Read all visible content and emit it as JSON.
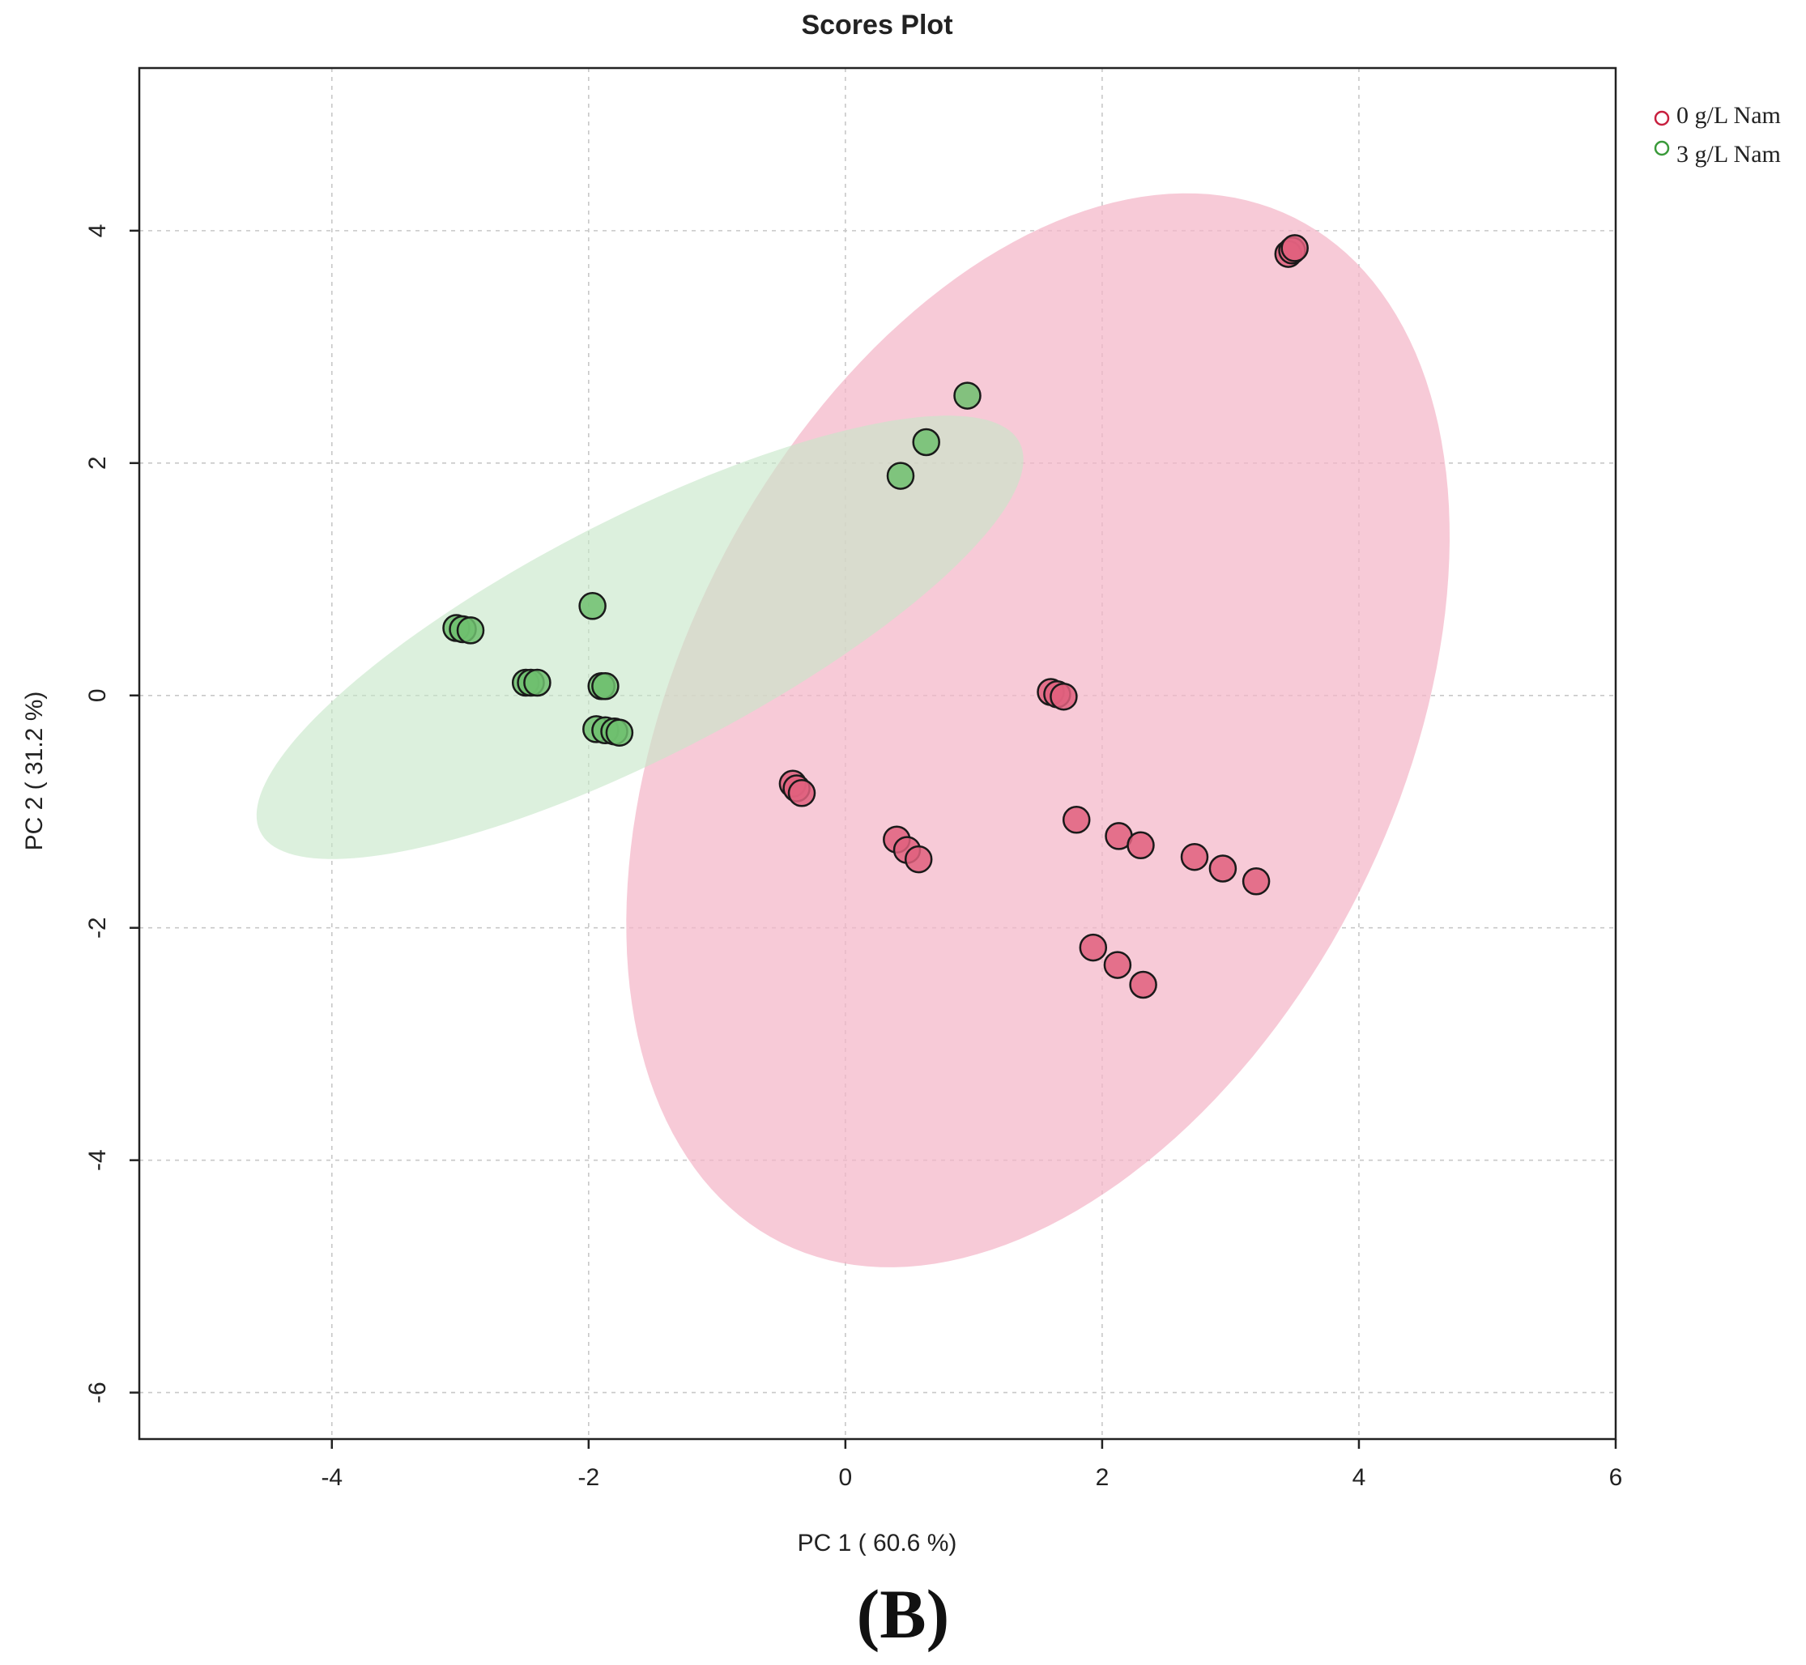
{
  "chart_data": {
    "type": "scatter",
    "title": "Scores Plot",
    "xlabel": "PC 1 ( 60.6 %)",
    "ylabel": "PC 2 ( 31.2 %)",
    "xlim": [
      -5.5,
      6.0
    ],
    "ylim": [
      -6.4,
      5.4
    ],
    "xticks": [
      -4,
      -2,
      0,
      2,
      4,
      6
    ],
    "yticks": [
      -6,
      -4,
      -2,
      0,
      2,
      4
    ],
    "grid": true,
    "legend_position": "top-right",
    "panel_label": "(B)",
    "series": [
      {
        "name": "0 g/L Nam",
        "color": "#e0607e",
        "legend_color": "#c8203f",
        "ellipse": {
          "center": [
            1.5,
            -0.3
          ],
          "semi_axes": [
            4.85,
            2.85
          ],
          "angle_deg": 68,
          "fill": "#f4b6c7"
        },
        "points": [
          [
            3.45,
            3.8
          ],
          [
            3.48,
            3.83
          ],
          [
            3.5,
            3.85
          ],
          [
            1.6,
            0.03
          ],
          [
            1.65,
            0.01
          ],
          [
            1.7,
            -0.01
          ],
          [
            -0.41,
            -0.76
          ],
          [
            -0.38,
            -0.8
          ],
          [
            -0.34,
            -0.84
          ],
          [
            0.4,
            -1.24
          ],
          [
            0.48,
            -1.33
          ],
          [
            0.57,
            -1.41
          ],
          [
            1.8,
            -1.07
          ],
          [
            2.13,
            -1.21
          ],
          [
            2.3,
            -1.29
          ],
          [
            2.72,
            -1.39
          ],
          [
            2.94,
            -1.49
          ],
          [
            3.2,
            -1.6
          ],
          [
            1.93,
            -2.17
          ],
          [
            2.12,
            -2.32
          ],
          [
            2.32,
            -2.49
          ]
        ]
      },
      {
        "name": "3 g/L Nam",
        "color": "#6fbf6f",
        "legend_color": "#3a9a3a",
        "ellipse": {
          "center": [
            -1.6,
            0.5
          ],
          "semi_axes": [
            3.4,
            1.0
          ],
          "angle_deg": 30,
          "fill": "#c6e6c8"
        },
        "points": [
          [
            0.95,
            2.58
          ],
          [
            0.63,
            2.18
          ],
          [
            0.43,
            1.89
          ],
          [
            -1.97,
            0.77
          ],
          [
            -3.03,
            0.58
          ],
          [
            -2.98,
            0.57
          ],
          [
            -2.92,
            0.56
          ],
          [
            -2.49,
            0.11
          ],
          [
            -2.45,
            0.11
          ],
          [
            -2.4,
            0.11
          ],
          [
            -1.9,
            0.08
          ],
          [
            -1.87,
            0.08
          ],
          [
            -1.94,
            -0.29
          ],
          [
            -1.87,
            -0.3
          ],
          [
            -1.8,
            -0.31
          ],
          [
            -1.76,
            -0.32
          ]
        ]
      }
    ]
  }
}
